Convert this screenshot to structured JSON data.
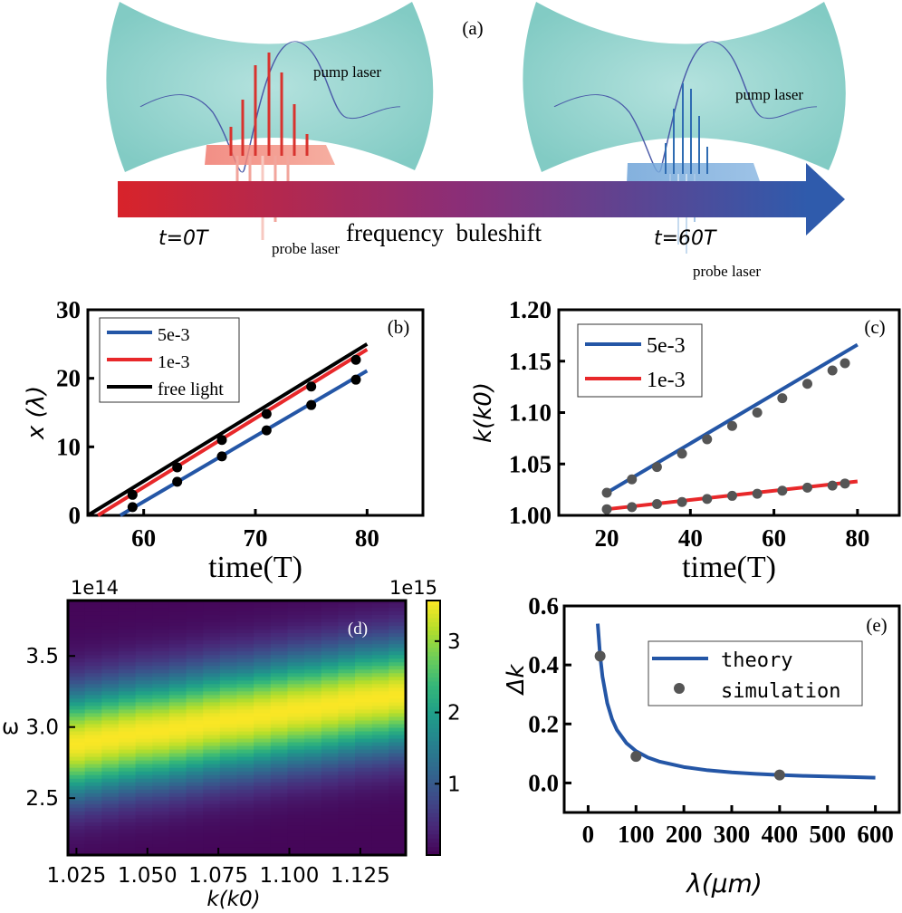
{
  "panel_a": {
    "label": "(a)",
    "left_pump": "pump laser",
    "left_probe": "probe laser",
    "right_pump": "pump laser",
    "right_probe": "probe laser",
    "t_start": "t=0T",
    "arrow_caption": "frequency  buleshift",
    "t_end": "t=60T",
    "colors": {
      "cavity": "#8ed2cc",
      "probe_start": "#e8403a",
      "probe_end": "#3a7cc4",
      "pump": "#4a5aa8",
      "arrow_start": "#d8232a",
      "arrow_end": "#2f5bac"
    }
  },
  "chart_data": [
    {
      "id": "b",
      "type": "line",
      "panel_label": "(b)",
      "xlabel": "time(T)",
      "ylabel": "x (λ)",
      "xlim": [
        55,
        85
      ],
      "ylim": [
        0,
        30
      ],
      "xticks": [
        "60",
        "70",
        "80"
      ],
      "yticks": [
        "0",
        "10",
        "20",
        "30"
      ],
      "legend_position": "top-left",
      "series": [
        {
          "name": "5e-3",
          "color": "#2456a6",
          "line": [
            [
              57.9,
              0
            ],
            [
              80,
              21.1
            ]
          ],
          "points_x": [
            59,
            63,
            67,
            71,
            75,
            79
          ],
          "points_y": [
            1.2,
            4.9,
            8.6,
            12.4,
            16.1,
            19.8
          ]
        },
        {
          "name": "1e-3",
          "color": "#e8282a",
          "line": [
            [
              55.9,
              0
            ],
            [
              80,
              24.2
            ]
          ],
          "points_x": [
            59,
            63,
            67,
            71,
            75,
            79
          ],
          "points_y": [
            3.0,
            7.0,
            11.0,
            14.8,
            18.8,
            22.7
          ]
        },
        {
          "name": "free light",
          "color": "#000000",
          "line": [
            [
              55,
              0
            ],
            [
              80,
              25
            ]
          ]
        }
      ],
      "point_color": "#000000"
    },
    {
      "id": "c",
      "type": "line",
      "panel_label": "(c)",
      "xlabel": "time(T)",
      "ylabel": "k(k0)",
      "xlim": [
        8.5,
        90
      ],
      "ylim": [
        1.0,
        1.2
      ],
      "xticks": [
        "20",
        "40",
        "60",
        "80"
      ],
      "yticks": [
        "1.00",
        "1.05",
        "1.10",
        "1.15",
        "1.20"
      ],
      "legend_position": "top-left",
      "series": [
        {
          "name": "5e-3",
          "color": "#2456a6",
          "line": [
            [
              20,
              1.022
            ],
            [
              80,
              1.166
            ]
          ],
          "points_x": [
            20,
            26,
            32,
            38,
            44,
            50,
            56,
            62,
            68,
            74,
            77
          ],
          "points_y": [
            1.022,
            1.035,
            1.047,
            1.06,
            1.074,
            1.087,
            1.1,
            1.114,
            1.128,
            1.141,
            1.148
          ]
        },
        {
          "name": "1e-3",
          "color": "#e8282a",
          "line": [
            [
              20,
              1.006
            ],
            [
              80,
              1.033
            ]
          ],
          "points_x": [
            20,
            26,
            32,
            38,
            44,
            50,
            56,
            62,
            68,
            74,
            77
          ],
          "points_y": [
            1.006,
            1.008,
            1.011,
            1.013,
            1.016,
            1.019,
            1.021,
            1.024,
            1.027,
            1.029,
            1.031
          ]
        }
      ],
      "point_color": "#555555"
    },
    {
      "id": "d",
      "type": "heatmap",
      "panel_label": "(d)",
      "xlabel": "k(k0)",
      "ylabel": "ω",
      "y_offset_label": "1e14",
      "colorbar_offset_label": "1e15",
      "xlim": [
        1.022,
        1.141
      ],
      "ylim": [
        2.1,
        3.89
      ],
      "xticks": [
        "1.025",
        "1.050",
        "1.075",
        "1.100",
        "1.125"
      ],
      "yticks": [
        "2.5",
        "3.0",
        "3.5"
      ],
      "colorbar_ticks": [
        "1",
        "2",
        "3"
      ],
      "colorbar_range": [
        0,
        3.57
      ],
      "colormap": "viridis",
      "columns_k": [
        1.025,
        1.031,
        1.037,
        1.043,
        1.049,
        1.055,
        1.061,
        1.067,
        1.073,
        1.079,
        1.085,
        1.091,
        1.097,
        1.103,
        1.109,
        1.115,
        1.121,
        1.127,
        1.133,
        1.139
      ],
      "ridge_omega": [
        2.88,
        2.9,
        2.92,
        2.94,
        2.96,
        2.97,
        2.99,
        3.01,
        3.03,
        3.05,
        3.06,
        3.08,
        3.1,
        3.12,
        3.13,
        3.15,
        3.17,
        3.19,
        3.2,
        3.22
      ],
      "peak_value": 3.5,
      "ridge_width_omega": 0.26
    },
    {
      "id": "e",
      "type": "line",
      "panel_label": "(e)",
      "xlabel": "λ(μm)",
      "ylabel": "Δk",
      "xlim": [
        -50,
        650
      ],
      "ylim": [
        -0.1,
        0.6
      ],
      "xticks": [
        "0",
        "100",
        "200",
        "300",
        "400",
        "500",
        "600"
      ],
      "yticks": [
        "0.0",
        "0.2",
        "0.4",
        "0.6"
      ],
      "legend_position": "upper-right",
      "series": [
        {
          "name": "theory",
          "color": "#2456a6",
          "x": [
            20,
            25,
            30,
            40,
            50,
            60,
            80,
            100,
            125,
            150,
            200,
            250,
            300,
            350,
            400,
            450,
            500,
            550,
            600
          ],
          "y": [
            0.54,
            0.432,
            0.36,
            0.27,
            0.216,
            0.18,
            0.135,
            0.108,
            0.086,
            0.072,
            0.054,
            0.043,
            0.036,
            0.031,
            0.027,
            0.024,
            0.022,
            0.02,
            0.018
          ]
        },
        {
          "name": "simulation",
          "color": "#555555",
          "x": [
            25,
            100,
            400
          ],
          "y": [
            0.43,
            0.09,
            0.027
          ]
        }
      ]
    }
  ]
}
